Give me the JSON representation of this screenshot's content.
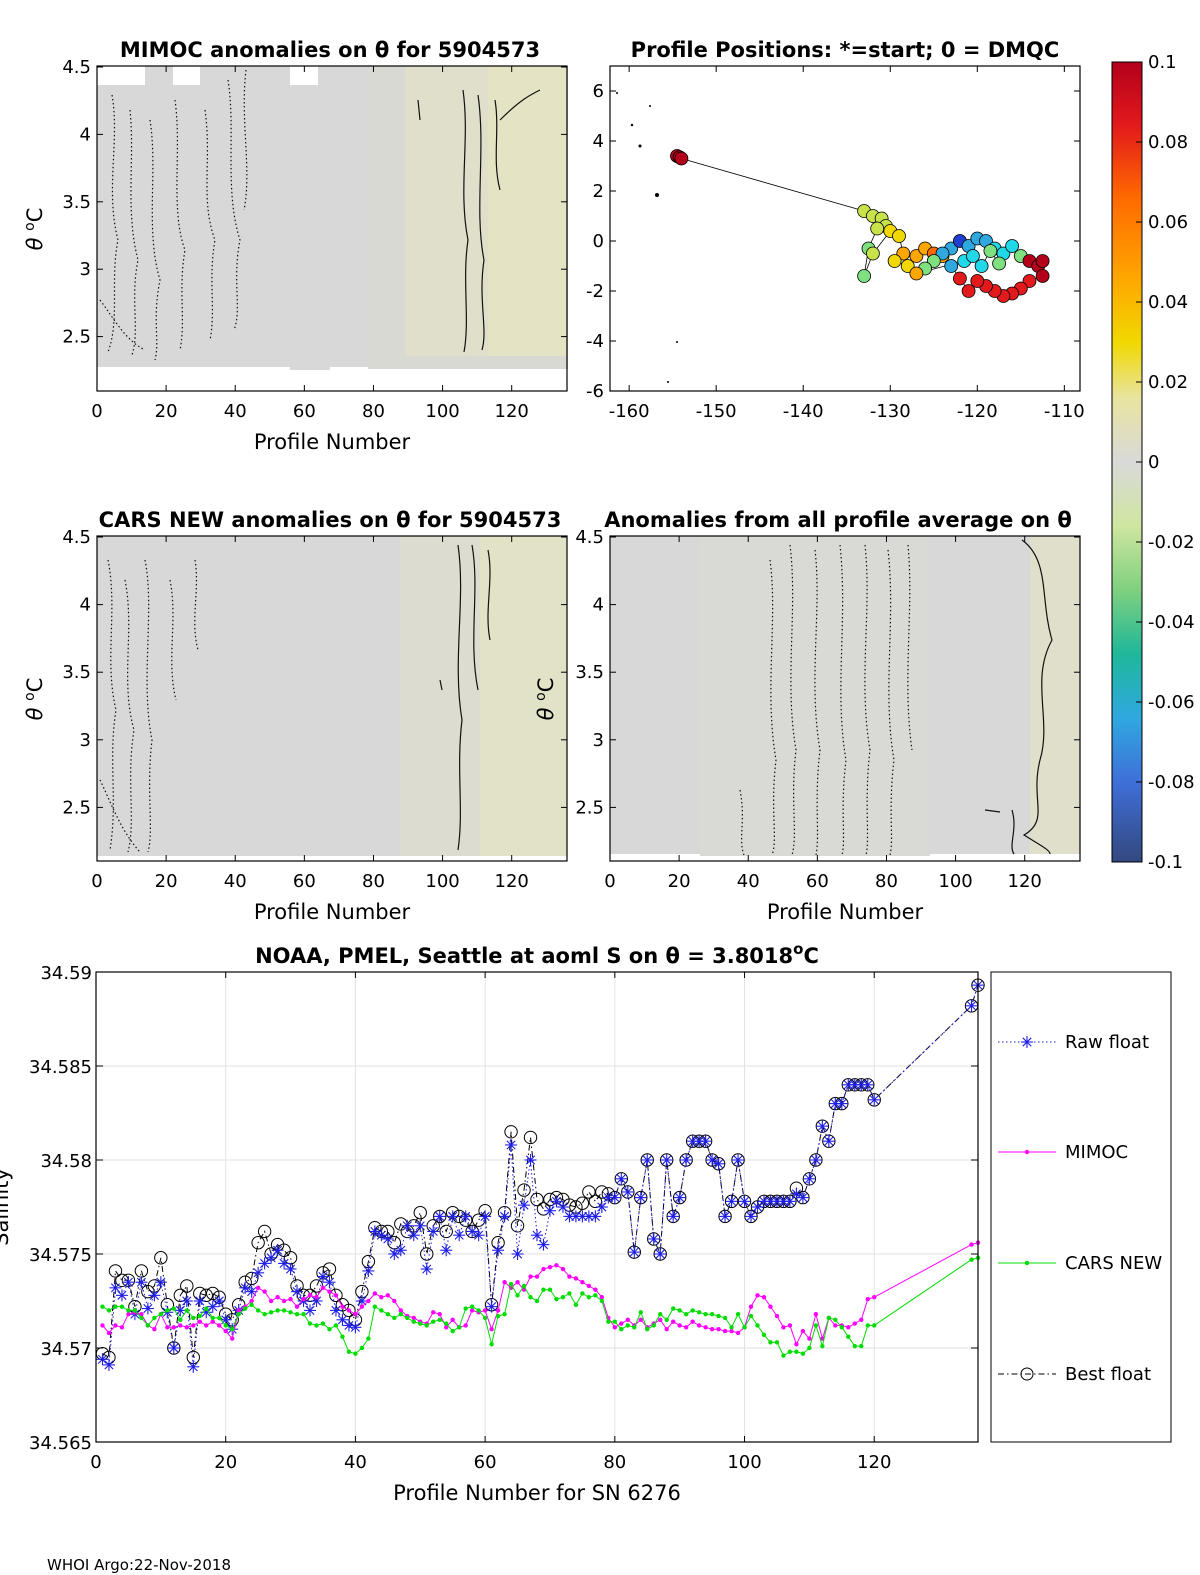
{
  "footer": "WHOI Argo:22-Nov-2018",
  "symbols": {
    "theta": "θ",
    "degC": "°C",
    "degC_sup": "o",
    "degC_c": "C"
  },
  "colors": {
    "raw": "#1f1fe6",
    "mimoc": "#ff00ff",
    "cars": "#00dd00",
    "best": "#000000",
    "field": "#d9d9d9",
    "field_warm": "#e3e3c6"
  },
  "panels": {
    "mimoc": {
      "title": "MIMOC anomalies on θ  for 5904573",
      "xlabel": "Profile Number",
      "ylabel_prefix": "θ",
      "xticks": [
        "0",
        "20",
        "40",
        "60",
        "80",
        "100",
        "120"
      ],
      "yticks": [
        "2.5",
        "3",
        "3.5",
        "4",
        "4.5"
      ]
    },
    "positions": {
      "title": "Profile Positions: *=start; 0 = DMQC",
      "xticks": [
        "-160",
        "-150",
        "-140",
        "-130",
        "-120",
        "-110"
      ],
      "yticks": [
        "-6",
        "-4",
        "-2",
        "0",
        "2",
        "4",
        "6"
      ]
    },
    "cars": {
      "title": "CARS NEW anomalies on θ for 5904573",
      "xlabel": "Profile Number",
      "ylabel_prefix": "θ",
      "xticks": [
        "0",
        "20",
        "40",
        "60",
        "80",
        "100",
        "120"
      ],
      "yticks": [
        "2.5",
        "3",
        "3.5",
        "4",
        "4.5"
      ]
    },
    "allavg": {
      "title": "Anomalies from all profile average on θ",
      "xlabel": "Profile Number",
      "ylabel_prefix": "θ",
      "xticks": [
        "0",
        "20",
        "40",
        "60",
        "80",
        "100",
        "120"
      ],
      "yticks": [
        "2.5",
        "3",
        "3.5",
        "4",
        "4.5"
      ]
    },
    "colorbar": {
      "ticks": [
        "0.1",
        "0.08",
        "0.06",
        "0.04",
        "0.02",
        "0",
        "-0.02",
        "-0.04",
        "-0.06",
        "-0.08",
        "-0.1"
      ]
    }
  },
  "chart_data": {
    "type": "line",
    "title": "NOAA, PMEL, Seattle at aoml S on θ = 3.8018°C",
    "title_main": "NOAA, PMEL, Seattle at aoml S on θ = 3.8018",
    "title_sup": "o",
    "title_end": "C",
    "xlabel": "Profile Number for SN 6276",
    "ylabel": "Salinity",
    "xlim": [
      0,
      136
    ],
    "ylim": [
      34.565,
      34.59
    ],
    "xticks": [
      "0",
      "20",
      "40",
      "60",
      "80",
      "100",
      "120"
    ],
    "yticks": [
      "34.565",
      "34.57",
      "34.575",
      "34.58",
      "34.585",
      "34.59"
    ],
    "grid": true,
    "legend_placement": "outside-right",
    "series": [
      {
        "name": "Raw float",
        "marker": "asterisk",
        "line": "dotted",
        "x": [
          1,
          2,
          3,
          4,
          5,
          6,
          7,
          8,
          9,
          10,
          11,
          12,
          13,
          14,
          15,
          16,
          17,
          18,
          19,
          20,
          21,
          22,
          23,
          24,
          25,
          26,
          27,
          28,
          29,
          30,
          31,
          32,
          33,
          34,
          35,
          36,
          37,
          38,
          39,
          40,
          41,
          42,
          43,
          44,
          45,
          46,
          47,
          48,
          49,
          50,
          51,
          52,
          53,
          54,
          55,
          56,
          57,
          58,
          59,
          60,
          61,
          62,
          63,
          64,
          65,
          66,
          67,
          68,
          69,
          70,
          71,
          72,
          73,
          74,
          75,
          76,
          77,
          78,
          79,
          80,
          81,
          82,
          83,
          84,
          85,
          86,
          87,
          88,
          89,
          90,
          91,
          92,
          93,
          94,
          95,
          96,
          97,
          98,
          99,
          100,
          101,
          102,
          103,
          104,
          105,
          106,
          107,
          108,
          109,
          110,
          111,
          112,
          113,
          114,
          115,
          116,
          117,
          118,
          119,
          120,
          135,
          136
        ],
        "y": [
          34.5694,
          34.5691,
          34.5732,
          34.5728,
          34.5735,
          34.5718,
          34.5735,
          34.5721,
          34.5728,
          34.5735,
          34.5719,
          34.57,
          34.572,
          34.5725,
          34.569,
          34.5725,
          34.5719,
          34.5722,
          34.5725,
          34.5715,
          34.571,
          34.572,
          34.5732,
          34.573,
          34.574,
          34.5745,
          34.5748,
          34.5752,
          34.5745,
          34.5742,
          34.573,
          34.5725,
          34.572,
          34.5725,
          34.5738,
          34.5735,
          34.572,
          34.5715,
          34.5712,
          34.5711,
          34.5725,
          34.5741,
          34.5762,
          34.576,
          34.5758,
          34.575,
          34.5752,
          34.5765,
          34.576,
          34.5765,
          34.5742,
          34.5762,
          34.577,
          34.5752,
          34.577,
          34.576,
          34.577,
          34.5762,
          34.576,
          34.577,
          34.5722,
          34.5752,
          34.577,
          34.5808,
          34.575,
          34.5776,
          34.58,
          34.576,
          34.5755,
          34.5773,
          34.5778,
          34.5775,
          34.577,
          34.577,
          34.577,
          34.577,
          34.577,
          34.5775,
          34.578,
          34.578,
          34.579,
          34.5783,
          34.5751,
          34.578,
          34.58,
          34.5758,
          34.575,
          34.58,
          34.577,
          34.578,
          34.58,
          34.581,
          34.581,
          34.581,
          34.58,
          34.5798,
          34.577,
          34.5778,
          34.58,
          34.5778,
          34.577,
          34.5775,
          34.5778,
          34.5778,
          34.5778,
          34.5778,
          34.5778,
          34.5782,
          34.578,
          34.579,
          34.58,
          34.5818,
          34.581,
          34.583,
          34.583,
          34.584,
          34.584,
          34.584,
          34.584,
          34.5832,
          34.5882,
          34.5893
        ]
      },
      {
        "name": "MIMOC",
        "marker": "dot",
        "line": "solid",
        "x": [
          1,
          2,
          3,
          4,
          5,
          6,
          7,
          8,
          9,
          10,
          11,
          12,
          13,
          14,
          15,
          16,
          17,
          18,
          19,
          20,
          21,
          22,
          23,
          24,
          25,
          26,
          27,
          28,
          29,
          30,
          31,
          32,
          33,
          34,
          35,
          36,
          37,
          38,
          39,
          40,
          41,
          42,
          43,
          44,
          45,
          46,
          47,
          48,
          49,
          50,
          51,
          52,
          53,
          54,
          55,
          56,
          57,
          58,
          59,
          60,
          61,
          62,
          63,
          64,
          65,
          66,
          67,
          68,
          69,
          70,
          71,
          72,
          73,
          74,
          75,
          76,
          77,
          78,
          79,
          80,
          81,
          82,
          83,
          84,
          85,
          86,
          87,
          88,
          89,
          90,
          91,
          92,
          93,
          94,
          95,
          96,
          97,
          98,
          99,
          100,
          101,
          102,
          103,
          104,
          105,
          106,
          107,
          108,
          109,
          110,
          111,
          112,
          113,
          114,
          115,
          116,
          117,
          118,
          119,
          120,
          135,
          136
        ],
        "y": [
          34.5712,
          34.5708,
          34.5712,
          34.5711,
          34.5718,
          34.5719,
          34.5718,
          34.5712,
          34.571,
          34.5718,
          34.5711,
          34.5711,
          34.5712,
          34.5711,
          34.5712,
          34.5714,
          34.5712,
          34.5714,
          34.5712,
          34.5709,
          34.5705,
          34.572,
          34.5722,
          34.5725,
          34.5732,
          34.573,
          34.5725,
          34.5727,
          34.5725,
          34.5726,
          34.5722,
          34.5726,
          34.5728,
          34.5727,
          34.5732,
          34.573,
          34.5728,
          34.5722,
          34.572,
          34.5718,
          34.5722,
          34.5725,
          34.5729,
          34.5727,
          34.5728,
          34.5725,
          34.572,
          34.5717,
          34.5716,
          34.5714,
          34.5713,
          34.5719,
          34.5718,
          34.5711,
          34.5715,
          34.5711,
          34.5712,
          34.572,
          34.5719,
          34.572,
          34.571,
          34.572,
          34.5735,
          34.5732,
          34.5735,
          34.5731,
          34.5738,
          34.5738,
          34.5742,
          34.5743,
          34.5744,
          34.5742,
          34.5738,
          34.5737,
          34.5735,
          34.5733,
          34.5731,
          34.5727,
          34.5716,
          34.5711,
          34.5713,
          34.5715,
          34.5712,
          34.5715,
          34.5711,
          34.5713,
          34.5715,
          34.571,
          34.5714,
          34.5712,
          34.5711,
          34.5714,
          34.5712,
          34.5711,
          34.571,
          34.571,
          34.5709,
          34.5709,
          34.5708,
          34.5711,
          34.5722,
          34.5728,
          34.5727,
          34.5722,
          34.5717,
          34.5711,
          34.5712,
          34.5702,
          34.5709,
          34.5705,
          34.5718,
          34.5705,
          34.5716,
          34.5712,
          34.5712,
          34.5711,
          34.5713,
          34.5715,
          34.5726,
          34.5727,
          34.5755,
          34.5756
        ]
      },
      {
        "name": "CARS NEW",
        "marker": "dot",
        "line": "solid",
        "x": [
          1,
          2,
          3,
          4,
          5,
          6,
          7,
          8,
          9,
          10,
          11,
          12,
          13,
          14,
          15,
          16,
          17,
          18,
          19,
          20,
          21,
          22,
          23,
          24,
          25,
          26,
          27,
          28,
          29,
          30,
          31,
          32,
          33,
          34,
          35,
          36,
          37,
          38,
          39,
          40,
          41,
          42,
          43,
          44,
          45,
          46,
          47,
          48,
          49,
          50,
          51,
          52,
          53,
          54,
          55,
          56,
          57,
          58,
          59,
          60,
          61,
          62,
          63,
          64,
          65,
          66,
          67,
          68,
          69,
          70,
          71,
          72,
          73,
          74,
          75,
          76,
          77,
          78,
          79,
          80,
          81,
          82,
          83,
          84,
          85,
          86,
          87,
          88,
          89,
          90,
          91,
          92,
          93,
          94,
          95,
          96,
          97,
          98,
          99,
          100,
          101,
          102,
          103,
          104,
          105,
          106,
          107,
          108,
          109,
          110,
          111,
          112,
          113,
          114,
          115,
          116,
          117,
          118,
          119,
          120,
          135,
          136
        ],
        "y": [
          34.5722,
          34.572,
          34.5722,
          34.5722,
          34.572,
          34.572,
          34.5716,
          34.5712,
          34.5716,
          34.5718,
          34.572,
          34.5721,
          34.5715,
          34.572,
          34.5716,
          34.5717,
          34.5721,
          34.5716,
          34.5716,
          34.5712,
          34.571,
          34.5718,
          34.5721,
          34.5723,
          34.572,
          34.5718,
          34.5719,
          34.572,
          34.572,
          34.5719,
          34.5718,
          34.5718,
          34.5713,
          34.5712,
          34.5713,
          34.571,
          34.5712,
          34.5706,
          34.5698,
          34.5697,
          34.57,
          34.5705,
          34.5722,
          34.572,
          34.5718,
          34.5716,
          34.5718,
          34.5716,
          34.5714,
          34.5713,
          34.5712,
          34.5714,
          34.5715,
          34.5713,
          34.5709,
          34.5711,
          34.5721,
          34.5722,
          34.572,
          34.5716,
          34.5702,
          34.5717,
          34.5718,
          34.5734,
          34.5728,
          34.5733,
          34.5727,
          34.5725,
          34.5731,
          34.5731,
          34.5726,
          34.5727,
          34.5729,
          34.5723,
          34.5729,
          34.5727,
          34.5728,
          34.5725,
          34.5714,
          34.5714,
          34.571,
          34.5712,
          34.5711,
          34.5719,
          34.571,
          34.5712,
          34.5718,
          34.5715,
          34.5721,
          34.572,
          34.5718,
          34.572,
          34.5719,
          34.5718,
          34.5718,
          34.5717,
          34.5716,
          34.5711,
          34.5718,
          34.5711,
          34.5717,
          34.5712,
          34.5707,
          34.5703,
          34.5703,
          34.5696,
          34.5698,
          34.5698,
          34.5697,
          34.57,
          34.5712,
          34.5701,
          34.5716,
          34.5715,
          34.5711,
          34.5706,
          34.5701,
          34.5701,
          34.5712,
          34.5712,
          34.5747,
          34.5748
        ]
      },
      {
        "name": "Best float",
        "marker": "circle",
        "line": "dashdot",
        "x": [
          1,
          2,
          3,
          4,
          5,
          6,
          7,
          8,
          9,
          10,
          11,
          12,
          13,
          14,
          15,
          16,
          17,
          18,
          19,
          20,
          21,
          22,
          23,
          24,
          25,
          26,
          27,
          28,
          29,
          30,
          31,
          32,
          33,
          34,
          35,
          36,
          37,
          38,
          39,
          40,
          41,
          42,
          43,
          44,
          45,
          46,
          47,
          48,
          49,
          50,
          51,
          52,
          53,
          54,
          55,
          56,
          57,
          58,
          59,
          60,
          61,
          62,
          63,
          64,
          65,
          66,
          67,
          68,
          69,
          70,
          71,
          72,
          73,
          74,
          75,
          76,
          77,
          78,
          79,
          80,
          81,
          82,
          83,
          84,
          85,
          86,
          87,
          88,
          89,
          90,
          91,
          92,
          93,
          94,
          95,
          96,
          97,
          98,
          99,
          100,
          101,
          102,
          103,
          104,
          105,
          106,
          107,
          108,
          109,
          110,
          111,
          112,
          113,
          114,
          115,
          116,
          117,
          118,
          119,
          120,
          135,
          136
        ],
        "y": [
          34.5697,
          34.5695,
          34.5741,
          34.5736,
          34.5736,
          34.5722,
          34.5741,
          34.573,
          34.5733,
          34.5748,
          34.5723,
          34.57,
          34.5728,
          34.5733,
          34.5695,
          34.5729,
          34.5728,
          34.5729,
          34.5727,
          34.5718,
          34.5715,
          34.5723,
          34.5735,
          34.5737,
          34.5756,
          34.5762,
          34.575,
          34.5755,
          34.5752,
          34.5748,
          34.5733,
          34.5728,
          34.5728,
          34.5733,
          34.574,
          34.5742,
          34.5728,
          34.5723,
          34.572,
          34.5715,
          34.573,
          34.5746,
          34.5764,
          34.5762,
          34.5762,
          34.5756,
          34.5766,
          34.5762,
          34.5765,
          34.5772,
          34.575,
          34.5765,
          34.577,
          34.5762,
          34.5772,
          34.577,
          34.5768,
          34.5762,
          34.5768,
          34.5773,
          34.5723,
          34.5756,
          34.5772,
          34.5815,
          34.5765,
          34.5784,
          34.5812,
          34.5779,
          34.5774,
          34.5779,
          34.578,
          34.5779,
          34.5776,
          34.5775,
          34.5777,
          34.5783,
          34.5778,
          34.5783,
          34.5782,
          34.578,
          34.579,
          34.5783,
          34.5751,
          34.578,
          34.58,
          34.5758,
          34.575,
          34.58,
          34.577,
          34.578,
          34.58,
          34.581,
          34.581,
          34.581,
          34.58,
          34.5798,
          34.577,
          34.5778,
          34.58,
          34.5778,
          34.577,
          34.5775,
          34.5778,
          34.5778,
          34.5778,
          34.5778,
          34.5778,
          34.5785,
          34.578,
          34.579,
          34.58,
          34.5818,
          34.581,
          34.583,
          34.583,
          34.584,
          34.584,
          34.584,
          34.584,
          34.5832,
          34.5882,
          34.5893
        ]
      }
    ]
  }
}
